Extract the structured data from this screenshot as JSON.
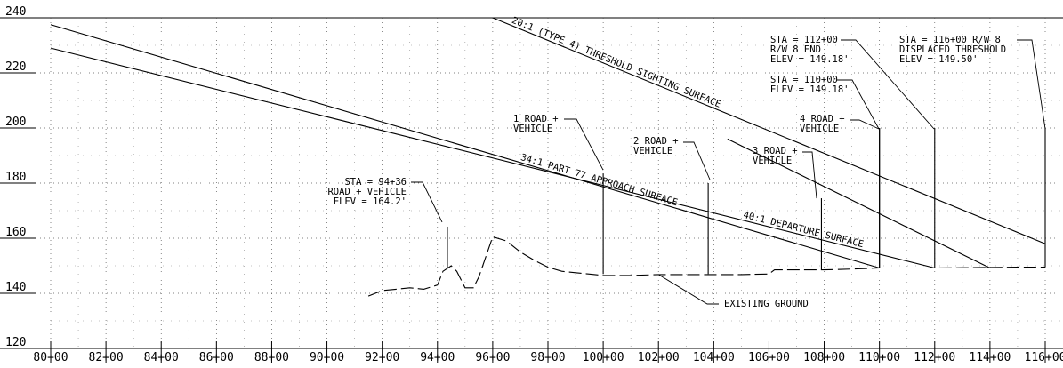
{
  "chart_data": {
    "type": "line",
    "x_axis": {
      "range": [
        80,
        116
      ],
      "tick_labels": [
        "80+00",
        "82+00",
        "84+00",
        "86+00",
        "88+00",
        "90+00",
        "92+00",
        "94+00",
        "96+00",
        "98+00",
        "100+00",
        "102+00",
        "104+00",
        "106+00",
        "108+00",
        "110+00",
        "112+00",
        "114+00",
        "116+00"
      ]
    },
    "y_axis": {
      "range": [
        120,
        240
      ],
      "tick_labels": [
        "240",
        "220",
        "200",
        "180",
        "160",
        "140",
        "120"
      ]
    },
    "grid": true,
    "surfaces": [
      {
        "label": "20:1 (TYPE 4) THRESHOLD SIGHTING SURFACE",
        "points": [
          [
            96,
            240
          ],
          [
            116,
            158
          ]
        ]
      },
      {
        "label": "34:1 PART 77 APPROACH SURFACE",
        "points": [
          [
            80,
            237.5
          ],
          [
            110,
            149.2
          ]
        ]
      },
      {
        "label": "40:1 DEPARTURE SURFACE",
        "points": [
          [
            80,
            229
          ],
          [
            112,
            149.2
          ]
        ]
      },
      {
        "label": "",
        "points": [
          [
            104.5,
            196
          ],
          [
            114,
            149.2
          ]
        ]
      }
    ],
    "existing_ground": {
      "label": "EXISTING GROUND",
      "points": [
        [
          91.5,
          139
        ],
        [
          92,
          141
        ],
        [
          92.5,
          141.5
        ],
        [
          93,
          142
        ],
        [
          93.5,
          141.5
        ],
        [
          94,
          143
        ],
        [
          94.2,
          148
        ],
        [
          94.5,
          150
        ],
        [
          94.7,
          148
        ],
        [
          95,
          142
        ],
        [
          95.3,
          142
        ],
        [
          95.5,
          146
        ],
        [
          96,
          160.5
        ],
        [
          96.5,
          159
        ],
        [
          97,
          155
        ],
        [
          97.5,
          152
        ],
        [
          98,
          149.5
        ],
        [
          98.5,
          148
        ],
        [
          99,
          147.5
        ],
        [
          99.5,
          147
        ],
        [
          100,
          146.5
        ],
        [
          101,
          146.5
        ],
        [
          102,
          146.8
        ],
        [
          103,
          146.8
        ],
        [
          104,
          146.8
        ],
        [
          105,
          146.8
        ],
        [
          106,
          147
        ],
        [
          106.2,
          148.5
        ],
        [
          107,
          148.5
        ],
        [
          108,
          148.5
        ],
        [
          109,
          148.8
        ],
        [
          110,
          149.2
        ],
        [
          111,
          149.2
        ],
        [
          112,
          149.2
        ],
        [
          113,
          149.3
        ],
        [
          114,
          149.4
        ],
        [
          115,
          149.5
        ],
        [
          116,
          149.5
        ]
      ]
    },
    "obstructions": [
      {
        "station": 94.36,
        "top": 164.2,
        "base": 149,
        "lines": [
          "STA = 94+36",
          "ROAD + VEHICLE",
          "ELEV = 164.2'"
        ]
      },
      {
        "station": 100.0,
        "top": 183.5,
        "base": 147,
        "lines": [
          "1 ROAD +",
          "VEHICLE"
        ]
      },
      {
        "station": 103.8,
        "top": 180,
        "base": 147,
        "lines": [
          "2 ROAD +",
          "VEHICLE"
        ]
      },
      {
        "station": 107.9,
        "top": 174.5,
        "base": 148.5,
        "lines": [
          "3 ROAD +",
          "VEHICLE"
        ]
      },
      {
        "station": 110.0,
        "top": 200,
        "base": 149.2,
        "lines": [
          "4 ROAD +",
          "VEHICLE"
        ]
      }
    ],
    "station_markers": [
      {
        "station": 110.0,
        "top": 200,
        "base": 149.2,
        "lines": [
          "STA = 110+00",
          "ELEV = 149.18'"
        ]
      },
      {
        "station": 112.0,
        "top": 200,
        "base": 149.2,
        "lines": [
          "STA = 112+00",
          "R/W 8 END",
          "ELEV = 149.18'"
        ]
      },
      {
        "station": 116.0,
        "top": 200,
        "base": 149.5,
        "lines": [
          "STA = 116+00 R/W 8",
          "DISPLACED THRESHOLD",
          "ELEV = 149.50'"
        ]
      }
    ]
  }
}
